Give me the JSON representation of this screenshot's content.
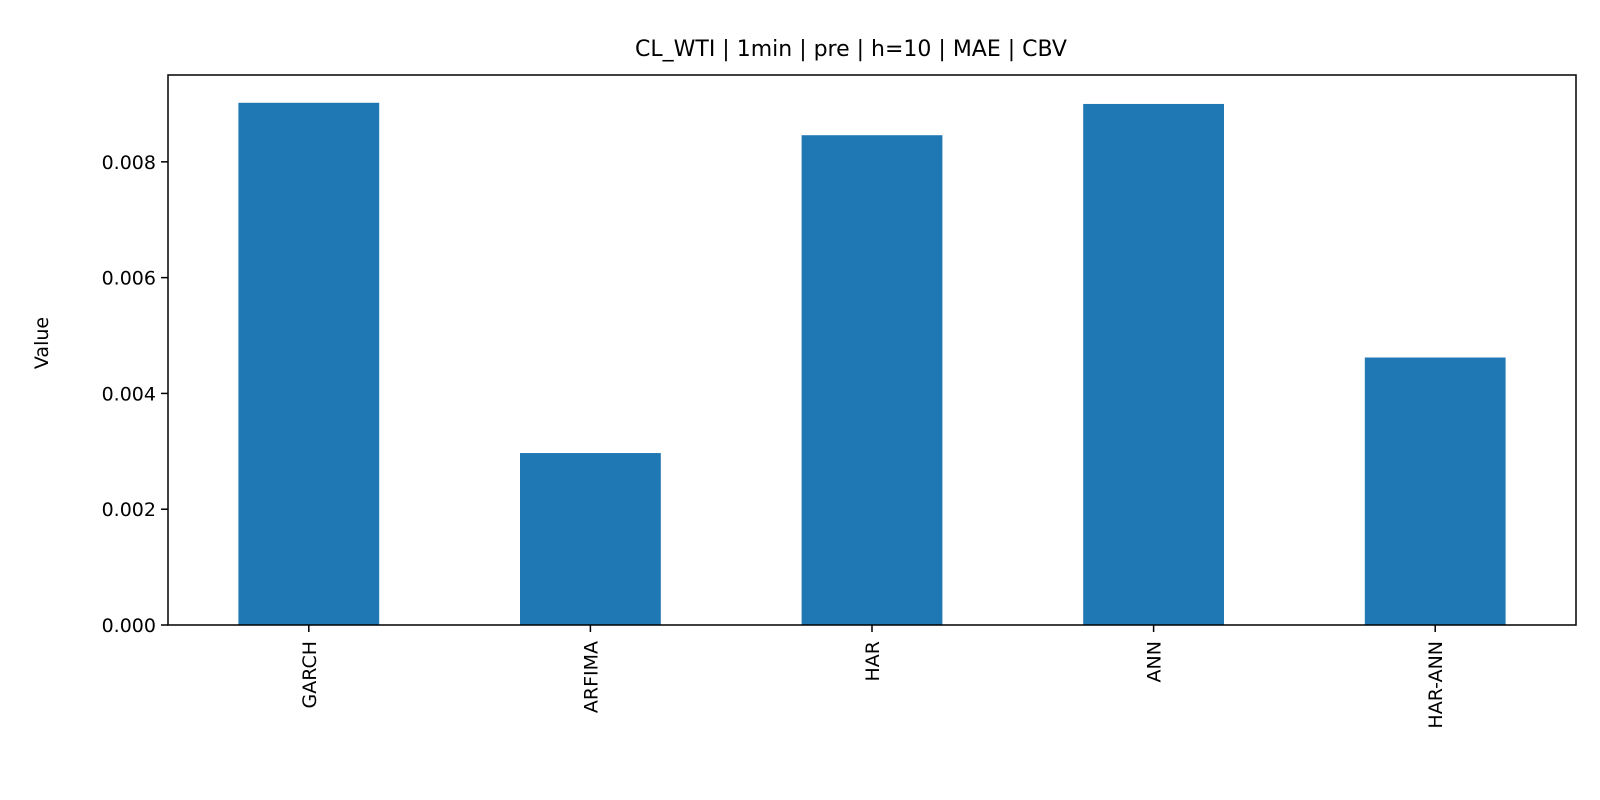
{
  "chart_data": {
    "type": "bar",
    "title": "CL_WTI | 1min | pre | h=10 | MAE | CBV",
    "xlabel": "",
    "ylabel": "Value",
    "categories": [
      "GARCH",
      "ARFIMA",
      "HAR",
      "ANN",
      "HAR-ANN"
    ],
    "values": [
      0.00902,
      0.00297,
      0.00846,
      0.009,
      0.00462
    ],
    "ylim": [
      0,
      0.0095
    ],
    "yticks": [
      0.0,
      0.002,
      0.004,
      0.006,
      0.008
    ],
    "ytick_labels": [
      "0.000",
      "0.002",
      "0.004",
      "0.006",
      "0.008"
    ],
    "bar_color": "#1f77b4",
    "grid": false,
    "legend": "none"
  }
}
